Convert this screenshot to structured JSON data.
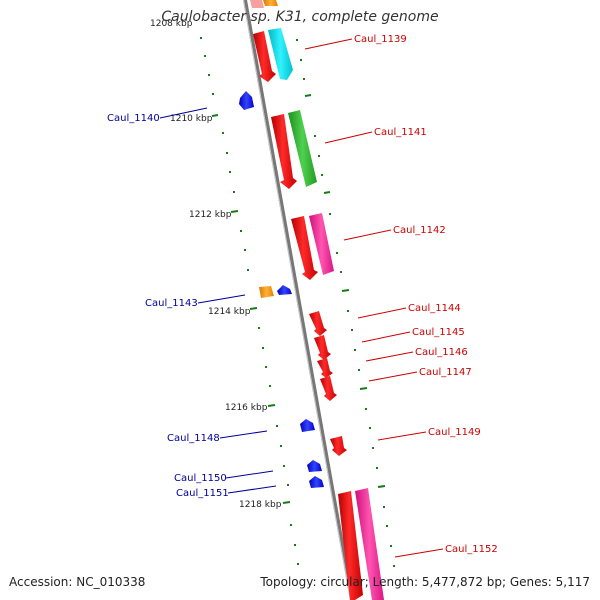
{
  "title": "Caulobacter sp. K31, complete genome",
  "accession": "Accession: NC_010338",
  "summary": "Topology: circular; Length: 5,477,872 bp; Genes: 5,117",
  "colors": {
    "forward_label": "#cc0000",
    "reverse_label": "#000099",
    "kbp_marks": "#1a7a1a",
    "backbone": "#888888"
  },
  "kbp_ticks": [
    "1208 kbp",
    "1210 kbp",
    "1212 kbp",
    "1214 kbp",
    "1216 kbp",
    "1218 kbp"
  ],
  "forward_genes": [
    {
      "label": "Caul_1139"
    },
    {
      "label": "Caul_1141"
    },
    {
      "label": "Caul_1142"
    },
    {
      "label": "Caul_1144"
    },
    {
      "label": "Caul_1145"
    },
    {
      "label": "Caul_1146"
    },
    {
      "label": "Caul_1147"
    },
    {
      "label": "Caul_1149"
    },
    {
      "label": "Caul_1152"
    }
  ],
  "reverse_genes": [
    {
      "label": "Caul_1140"
    },
    {
      "label": "Caul_1143"
    },
    {
      "label": "Caul_1148"
    },
    {
      "label": "Caul_1150"
    },
    {
      "label": "Caul_1151"
    }
  ]
}
